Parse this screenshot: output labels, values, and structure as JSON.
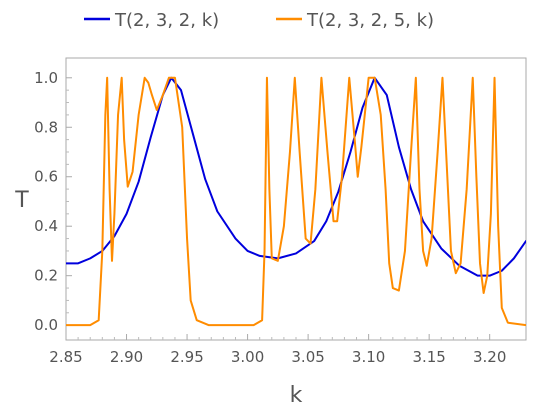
{
  "chart_data": {
    "type": "line",
    "xlabel": "k",
    "ylabel": "T",
    "xlim": [
      2.85,
      3.23
    ],
    "ylim": [
      -0.06,
      1.08
    ],
    "x_ticks": [
      "2.85",
      "2.90",
      "2.95",
      "3.00",
      "3.05",
      "3.10",
      "3.15",
      "3.20"
    ],
    "y_ticks": [
      "0.0",
      "0.2",
      "0.4",
      "0.6",
      "0.8",
      "1.0"
    ],
    "grid": false,
    "legend_position": "top",
    "series": [
      {
        "name": "T(2, 3, 2, k)",
        "color": "#0000dd",
        "points": [
          [
            2.85,
            0.25
          ],
          [
            2.86,
            0.25
          ],
          [
            2.87,
            0.27
          ],
          [
            2.88,
            0.3
          ],
          [
            2.89,
            0.36
          ],
          [
            2.9,
            0.45
          ],
          [
            2.91,
            0.58
          ],
          [
            2.92,
            0.76
          ],
          [
            2.93,
            0.93
          ],
          [
            2.937,
            1.0
          ],
          [
            2.945,
            0.95
          ],
          [
            2.955,
            0.77
          ],
          [
            2.965,
            0.59
          ],
          [
            2.975,
            0.46
          ],
          [
            2.99,
            0.35
          ],
          [
            3.0,
            0.3
          ],
          [
            3.01,
            0.28
          ],
          [
            3.025,
            0.27
          ],
          [
            3.04,
            0.29
          ],
          [
            3.055,
            0.34
          ],
          [
            3.065,
            0.42
          ],
          [
            3.075,
            0.54
          ],
          [
            3.085,
            0.7
          ],
          [
            3.095,
            0.88
          ],
          [
            3.105,
            1.0
          ],
          [
            3.115,
            0.93
          ],
          [
            3.125,
            0.72
          ],
          [
            3.135,
            0.55
          ],
          [
            3.145,
            0.42
          ],
          [
            3.16,
            0.31
          ],
          [
            3.175,
            0.24
          ],
          [
            3.19,
            0.2
          ],
          [
            3.2,
            0.2
          ],
          [
            3.21,
            0.22
          ],
          [
            3.22,
            0.27
          ],
          [
            3.23,
            0.34
          ]
        ]
      },
      {
        "name": "T(2, 3, 2, 5, k)",
        "color": "#ff8c00",
        "points": [
          [
            2.85,
            0.0
          ],
          [
            2.87,
            0.0
          ],
          [
            2.877,
            0.02
          ],
          [
            2.88,
            0.3
          ],
          [
            2.8825,
            0.85
          ],
          [
            2.884,
            1.0
          ],
          [
            2.886,
            0.55
          ],
          [
            2.888,
            0.26
          ],
          [
            2.89,
            0.45
          ],
          [
            2.893,
            0.85
          ],
          [
            2.896,
            1.0
          ],
          [
            2.898,
            0.75
          ],
          [
            2.901,
            0.56
          ],
          [
            2.905,
            0.62
          ],
          [
            2.91,
            0.85
          ],
          [
            2.915,
            1.0
          ],
          [
            2.918,
            0.98
          ],
          [
            2.921,
            0.93
          ],
          [
            2.925,
            0.87
          ],
          [
            2.93,
            0.93
          ],
          [
            2.935,
            1.0
          ],
          [
            2.94,
            1.0
          ],
          [
            2.946,
            0.8
          ],
          [
            2.95,
            0.35
          ],
          [
            2.953,
            0.1
          ],
          [
            2.958,
            0.02
          ],
          [
            2.968,
            0.0
          ],
          [
            3.005,
            0.0
          ],
          [
            3.012,
            0.02
          ],
          [
            3.014,
            0.3
          ],
          [
            3.016,
            1.0
          ],
          [
            3.018,
            0.55
          ],
          [
            3.02,
            0.27
          ],
          [
            3.025,
            0.26
          ],
          [
            3.03,
            0.4
          ],
          [
            3.035,
            0.7
          ],
          [
            3.039,
            1.0
          ],
          [
            3.043,
            0.7
          ],
          [
            3.048,
            0.35
          ],
          [
            3.052,
            0.33
          ],
          [
            3.056,
            0.55
          ],
          [
            3.061,
            1.0
          ],
          [
            3.066,
            0.7
          ],
          [
            3.071,
            0.42
          ],
          [
            3.074,
            0.42
          ],
          [
            3.078,
            0.6
          ],
          [
            3.084,
            1.0
          ],
          [
            3.089,
            0.72
          ],
          [
            3.091,
            0.6
          ],
          [
            3.094,
            0.72
          ],
          [
            3.1,
            1.0
          ],
          [
            3.105,
            1.0
          ],
          [
            3.11,
            0.85
          ],
          [
            3.114,
            0.55
          ],
          [
            3.117,
            0.25
          ],
          [
            3.12,
            0.15
          ],
          [
            3.125,
            0.14
          ],
          [
            3.13,
            0.3
          ],
          [
            3.135,
            0.7
          ],
          [
            3.139,
            1.0
          ],
          [
            3.142,
            0.55
          ],
          [
            3.145,
            0.3
          ],
          [
            3.148,
            0.24
          ],
          [
            3.152,
            0.35
          ],
          [
            3.157,
            0.7
          ],
          [
            3.161,
            1.0
          ],
          [
            3.165,
            0.6
          ],
          [
            3.168,
            0.3
          ],
          [
            3.172,
            0.21
          ],
          [
            3.176,
            0.25
          ],
          [
            3.181,
            0.55
          ],
          [
            3.186,
            1.0
          ],
          [
            3.189,
            0.6
          ],
          [
            3.192,
            0.25
          ],
          [
            3.195,
            0.13
          ],
          [
            3.198,
            0.2
          ],
          [
            3.201,
            0.45
          ],
          [
            3.204,
            1.0
          ],
          [
            3.207,
            0.4
          ],
          [
            3.21,
            0.07
          ],
          [
            3.215,
            0.01
          ],
          [
            3.23,
            0.0
          ]
        ]
      }
    ]
  }
}
